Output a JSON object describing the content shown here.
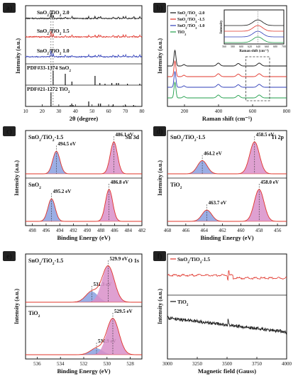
{
  "chart_data": [
    {
      "panel": "a)",
      "type": "line",
      "xlabel": "2θ (degree)",
      "ylabel": "Intensity (a.u.)",
      "xlim": [
        10,
        80
      ],
      "xticks": [
        10,
        20,
        30,
        40,
        50,
        60,
        70,
        80
      ],
      "series": [
        {
          "name": "SnO2/TiO2 2.0",
          "color": "#111111",
          "peaks": [
            25.3,
            26.6,
            33.9,
            37.9,
            48.0,
            51.8,
            54.0,
            55.1,
            62.7,
            65.9,
            68.8,
            70.3,
            75.1,
            78.7
          ]
        },
        {
          "name": "SnO2/TiO2 1.5",
          "color": "#e0342a",
          "peaks": [
            25.3,
            26.6,
            33.9,
            37.9,
            48.0,
            51.8,
            54.0,
            55.1,
            62.7,
            65.9,
            68.8,
            70.3,
            75.1,
            78.7
          ]
        },
        {
          "name": "SnO2/TiO2 1.0",
          "color": "#2e3db8",
          "peaks": [
            25.3,
            26.6,
            33.9,
            37.9,
            48.0,
            51.8,
            54.0,
            55.1,
            62.7,
            65.9,
            68.8,
            70.3,
            75.1,
            78.7
          ]
        }
      ],
      "references": [
        {
          "name": "PDF#33-1374 SnO2",
          "x": [
            26.6,
            33.9,
            37.9,
            51.8,
            54.7,
            57.8,
            61.9,
            64.7,
            65.9,
            71.3,
            78.7
          ],
          "h": [
            1.0,
            0.8,
            0.25,
            0.65,
            0.15,
            0.1,
            0.15,
            0.15,
            0.15,
            0.1,
            0.1
          ]
        },
        {
          "name": "PDF#21-1272 TiO2",
          "x": [
            25.3,
            36.9,
            37.8,
            38.6,
            48.0,
            53.9,
            55.1,
            62.1,
            62.7,
            68.8,
            70.3,
            75.0,
            76.0
          ],
          "h": [
            1.0,
            0.1,
            0.2,
            0.1,
            0.35,
            0.2,
            0.2,
            0.05,
            0.15,
            0.06,
            0.07,
            0.1,
            0.04
          ]
        }
      ]
    },
    {
      "panel": "b)",
      "type": "line",
      "xlabel": "Raman shift (cm⁻¹)",
      "ylabel": "Intensity (a.u.)",
      "xlim": [
        100,
        800
      ],
      "xticks": [
        200,
        400,
        600,
        800
      ],
      "series": [
        {
          "name": "SnO2/TiO2 -2.0",
          "color": "#111111"
        },
        {
          "name": "SnO2/TiO2 -1.5",
          "color": "#e0342a"
        },
        {
          "name": "SnO2/TiO2 -1.0",
          "color": "#2e3db8"
        },
        {
          "name": "TiO2",
          "color": "#1f9e4a"
        }
      ],
      "peaks": [
        144,
        197,
        399,
        516,
        639
      ],
      "inset": {
        "xlabel": "Raman shift (cm⁻¹)",
        "ylabel": "Intensity",
        "xlim": [
          560,
          700
        ],
        "xticks": [
          560,
          580,
          600,
          620,
          640,
          660,
          680,
          700
        ],
        "marker_x": 639
      },
      "inset_box_xrange": [
        560,
        700
      ]
    },
    {
      "panel": "c)",
      "type": "line",
      "title": "Sn 3d",
      "xlabel": "Binding Energy (eV)",
      "ylabel": "Intensity (a.u.)",
      "xlim": [
        499,
        482
      ],
      "xticks": [
        498,
        496,
        494,
        492,
        490,
        488,
        486,
        484,
        482
      ],
      "subpanels": [
        {
          "label": "SnO2/TiO2-1.5",
          "peaks": [
            {
              "x": 494.5,
              "label": "494.5 eV",
              "fill": "#8aa0e0",
              "height": 0.6
            },
            {
              "x": 486.1,
              "label": "486.1 eV",
              "fill": "#d98fc9",
              "height": 0.85
            }
          ]
        },
        {
          "label": "SnO2",
          "peaks": [
            {
              "x": 495.2,
              "label": "495.2 eV",
              "fill": "#8aa0e0",
              "height": 0.6
            },
            {
              "x": 486.8,
              "label": "486.8 eV",
              "fill": "#d98fc9",
              "height": 0.85
            }
          ]
        }
      ]
    },
    {
      "panel": "d)",
      "type": "line",
      "title": "Ti 2p",
      "xlabel": "Binding Energy (eV)",
      "ylabel": "Intensity (a.u.)",
      "xlim": [
        468,
        455
      ],
      "xticks": [
        468,
        466,
        464,
        462,
        460,
        458,
        456
      ],
      "subpanels": [
        {
          "label": "SnO2/TiO2-1.5",
          "peaks": [
            {
              "x": 464.2,
              "label": "464.2 eV",
              "fill": "#8aa0e0",
              "height": 0.35
            },
            {
              "x": 458.5,
              "label": "458.5 eV",
              "fill": "#d98fc9",
              "height": 0.85
            }
          ]
        },
        {
          "label": "TiO2",
          "peaks": [
            {
              "x": 463.7,
              "label": "463.7 eV",
              "fill": "#8aa0e0",
              "height": 0.3
            },
            {
              "x": 458.0,
              "label": "458.0 eV",
              "fill": "#d98fc9",
              "height": 0.85
            }
          ]
        }
      ]
    },
    {
      "panel": "e)",
      "type": "line",
      "title": "O 1s",
      "xlabel": "Binding Energy (eV)",
      "ylabel": "Intensity (a.u.)",
      "xlim": [
        537,
        527
      ],
      "xticks": [
        536,
        534,
        532,
        530,
        528
      ],
      "subpanels": [
        {
          "label": "SnO2/TiO2-1.5",
          "peaks": [
            {
              "x": 531.3,
              "label": "531.3 eV",
              "fill": "#8aa0e0",
              "height": 0.25
            },
            {
              "x": 529.9,
              "label": "529.9 eV",
              "fill": "#d98fc9",
              "height": 0.85
            }
          ]
        },
        {
          "label": "TiO2",
          "peaks": [
            {
              "x": 530.9,
              "label": "530.9 eV",
              "fill": "#8aa0e0",
              "height": 0.15
            },
            {
              "x": 529.5,
              "label": "529.5 eV",
              "fill": "#d98fc9",
              "height": 0.85
            }
          ]
        }
      ]
    },
    {
      "panel": "f)",
      "type": "line",
      "xlabel": "Magnetic field (Gauss)",
      "ylabel": "Intensity (a.u.)",
      "xlim": [
        3000,
        4000
      ],
      "xticks": [
        3000,
        3250,
        3500,
        3750,
        4000
      ],
      "series": [
        {
          "name": "SnO2/TiO2-1.5",
          "color": "#e0342a",
          "signal_x": 3510
        },
        {
          "name": "TiO2",
          "color": "#111111",
          "signal_x": 3510
        }
      ]
    }
  ]
}
